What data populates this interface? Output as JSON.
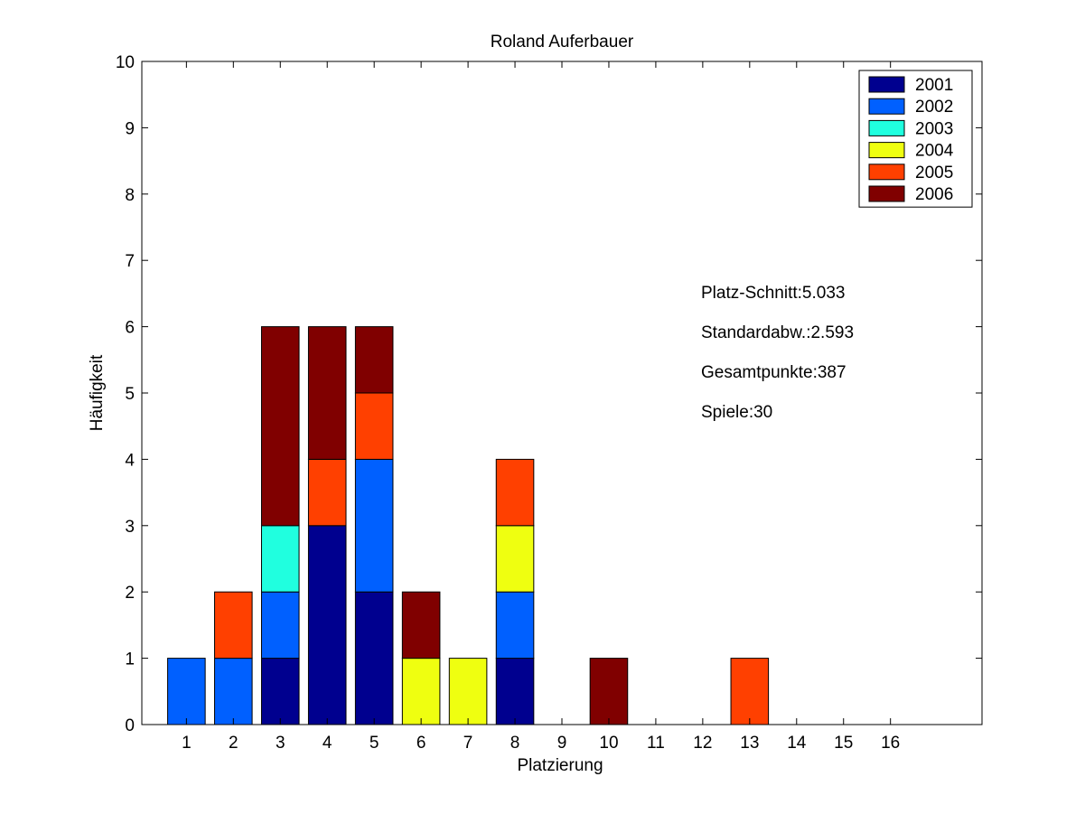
{
  "chart_data": {
    "type": "bar",
    "stacked": true,
    "title": "Roland Auferbauer",
    "xlabel": "Platzierung",
    "ylabel": "Häufigkeit",
    "categories": [
      "1",
      "2",
      "3",
      "4",
      "5",
      "6",
      "7",
      "8",
      "9",
      "10",
      "11",
      "12",
      "13",
      "14",
      "15",
      "16"
    ],
    "xlim": [
      0.05,
      17.95
    ],
    "ylim": [
      0,
      10
    ],
    "yticks": [
      0,
      1,
      2,
      3,
      4,
      5,
      6,
      7,
      8,
      9,
      10
    ],
    "grid": false,
    "legend_position": "top-right",
    "series": [
      {
        "name": "2001",
        "color": "#00008f",
        "values": [
          0,
          0,
          1,
          3,
          2,
          0,
          0,
          1,
          0,
          0,
          0,
          0,
          0,
          0,
          0,
          0
        ]
      },
      {
        "name": "2002",
        "color": "#0060ff",
        "values": [
          1,
          1,
          1,
          0,
          2,
          0,
          0,
          1,
          0,
          0,
          0,
          0,
          0,
          0,
          0,
          0
        ]
      },
      {
        "name": "2003",
        "color": "#20ffdf",
        "values": [
          0,
          0,
          1,
          0,
          0,
          0,
          0,
          0,
          0,
          0,
          0,
          0,
          0,
          0,
          0,
          0
        ]
      },
      {
        "name": "2004",
        "color": "#efff10",
        "values": [
          0,
          0,
          0,
          0,
          0,
          1,
          1,
          1,
          0,
          0,
          0,
          0,
          0,
          0,
          0,
          0
        ]
      },
      {
        "name": "2005",
        "color": "#ff4000",
        "values": [
          0,
          1,
          0,
          1,
          1,
          0,
          0,
          1,
          0,
          0,
          0,
          0,
          1,
          0,
          0,
          0
        ]
      },
      {
        "name": "2006",
        "color": "#800000",
        "values": [
          0,
          0,
          3,
          2,
          1,
          1,
          0,
          0,
          0,
          1,
          0,
          0,
          0,
          0,
          0,
          0
        ]
      }
    ],
    "annotations": [
      "Platz-Schnitt:5.033",
      "Standardabw.:2.593",
      "Gesamtpunkte:387",
      "Spiele:30"
    ]
  }
}
